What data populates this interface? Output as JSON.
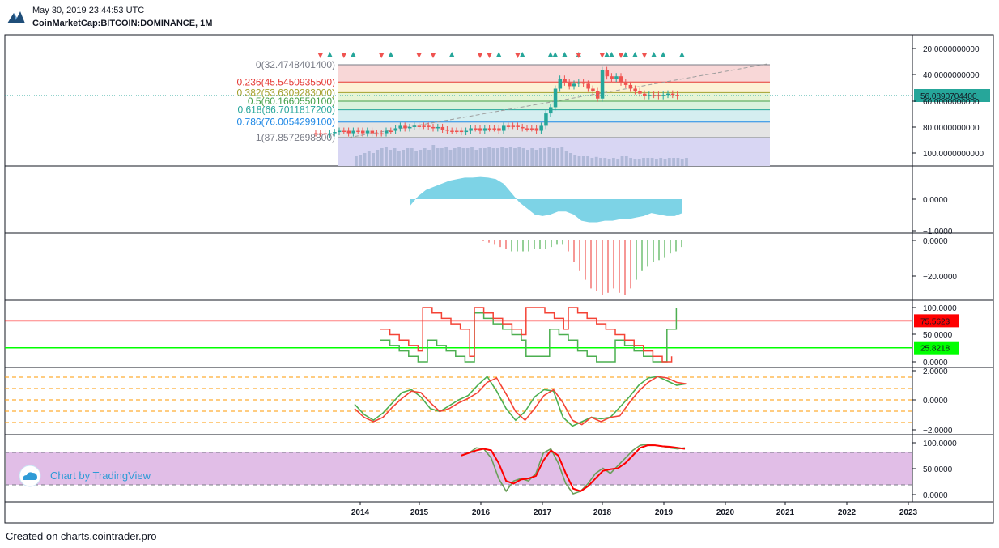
{
  "header": {
    "timestamp": "May 30, 2019 23:44:53 UTC",
    "symbol": "CoinMarketCap:BITCOIN:DOMINANCE, 1M"
  },
  "footer": {
    "text": "Created on charts.cointrader.pro"
  },
  "watermark": {
    "text": "Chart by TradingView"
  },
  "colors": {
    "up": "#26a69a",
    "down": "#ef5350",
    "price_line": "#26a69a",
    "red": "#ff0000",
    "green": "#00ff00",
    "oscillator": "#7dd3e6",
    "k_line": "#4caf50",
    "d_line": "#f44336",
    "band": "#e1bee7"
  },
  "chart_data": [
    {
      "panel": "price",
      "type": "candlestick",
      "scale": "inverted",
      "x_labels": [
        "2014",
        "2015",
        "2016",
        "2017",
        "2018",
        "2019",
        "2020",
        "2021",
        "2022",
        "2023"
      ],
      "y_ticks": [
        "20.0000000000",
        "40.0000000000",
        "60.0000000000",
        "80.0000000000",
        "100.0000000000"
      ],
      "last_price": "56.0890704400",
      "fibonacci": [
        {
          "label": "0(32.4748401400)",
          "value": 32.47,
          "color": "#787b86",
          "fill": "#f8d7d7"
        },
        {
          "label": "0.236(45.5450935500)",
          "value": 45.55,
          "color": "#e53935",
          "fill": "#fdf2d5"
        },
        {
          "label": "0.382(53.6309283000)",
          "value": 53.63,
          "color": "#a5a02c",
          "fill": "#e6f5d6"
        },
        {
          "label": "0.5(60.1660550100)",
          "value": 60.17,
          "color": "#43a047",
          "fill": "#d9f2dc"
        },
        {
          "label": "0.618(66.7011817200)",
          "value": 66.7,
          "color": "#26a69a",
          "fill": "#d5eef0"
        },
        {
          "label": "0.786(76.0054299100)",
          "value": 76.01,
          "color": "#1e88e5",
          "fill": "#e4e4e4"
        },
        {
          "label": "1(87.8572698800)",
          "value": 87.86,
          "color": "#787b86",
          "fill": "#d8d6f3"
        }
      ],
      "closes": [
        86,
        86,
        87,
        86,
        85,
        84,
        84,
        86,
        84,
        84,
        86,
        84,
        86,
        86,
        86,
        84,
        84,
        82,
        80,
        82,
        81,
        80,
        80,
        80,
        81,
        82,
        81,
        83,
        84,
        84,
        84,
        85,
        84,
        82,
        82,
        84,
        82,
        82,
        82,
        84,
        80,
        80,
        80,
        81,
        82,
        82,
        82,
        84,
        80,
        70,
        65,
        50,
        42,
        45,
        48,
        46,
        45,
        46,
        50,
        52,
        58,
        35,
        40,
        42,
        40,
        45,
        47,
        50,
        52,
        54,
        56,
        55,
        55,
        56,
        55,
        54,
        55,
        56
      ],
      "arrows_up": [
        3,
        8,
        16,
        29,
        39,
        44,
        50,
        51,
        53,
        56,
        62,
        63,
        66,
        68,
        72,
        74,
        78
      ],
      "arrows_down": [
        1,
        6,
        14,
        22,
        25,
        35,
        37,
        43,
        56,
        61,
        65,
        70
      ],
      "volumes": [
        0.3,
        0.35,
        0.4,
        0.45,
        0.4,
        0.5,
        0.55,
        0.6,
        0.5,
        0.55,
        0.45,
        0.5,
        0.55,
        0.55,
        0.45,
        0.5,
        0.55,
        0.5,
        0.65,
        0.55,
        0.55,
        0.6,
        0.5,
        0.55,
        0.6,
        0.55,
        0.55,
        0.6,
        0.5,
        0.55,
        0.55,
        0.6,
        0.55,
        0.55,
        0.6,
        0.55,
        0.6,
        0.55,
        0.6,
        0.55,
        0.5,
        0.55,
        0.5,
        0.55,
        0.55,
        0.6,
        0.55,
        0.55,
        0.6,
        0.45,
        0.4,
        0.35,
        0.3,
        0.3,
        0.3,
        0.25,
        0.28,
        0.25,
        0.25,
        0.2,
        0.25,
        0.2,
        0.3,
        0.3,
        0.25,
        0.2,
        0.2,
        0.25,
        0.25,
        0.25,
        0.2,
        0.25,
        0.2,
        0.25,
        0.25,
        0.25,
        0.2,
        0.25
      ]
    },
    {
      "panel": "oscillator",
      "type": "area",
      "y_ticks": [
        "0.0000",
        "−1.0000"
      ],
      "values": [
        -0.2,
        0.1,
        0.3,
        0.4,
        0.5,
        0.6,
        0.65,
        0.7,
        0.7,
        0.72,
        0.7,
        0.65,
        0.5,
        0.2,
        -0.1,
        -0.3,
        -0.5,
        -0.55,
        -0.5,
        -0.4,
        -0.4,
        -0.5,
        -0.7,
        -0.75,
        -0.75,
        -0.7,
        -0.7,
        -0.65,
        -0.65,
        -0.6,
        -0.55,
        -0.45,
        -0.5,
        -0.55,
        -0.55,
        -0.45
      ]
    },
    {
      "panel": "histogram",
      "type": "bar",
      "y_ticks": [
        "0.0000",
        "−20.0000"
      ],
      "values": [
        -0.3,
        -1,
        -2,
        -3,
        -4,
        -5,
        -5,
        -5,
        -5,
        -4,
        -4,
        -4,
        -3,
        -2,
        -2,
        -5,
        -10,
        -14,
        -18,
        -22,
        -23,
        -25,
        -24,
        -22,
        -24,
        -25,
        -22,
        -18,
        -14,
        -12,
        -10,
        -9,
        -8,
        -6,
        -5,
        -3
      ],
      "colors": [
        "down",
        "down",
        "down",
        "down",
        "down",
        "up",
        "up",
        "up",
        "up",
        "up",
        "up",
        "up",
        "up",
        "up",
        "up",
        "down",
        "down",
        "down",
        "down",
        "down",
        "down",
        "down",
        "down",
        "down",
        "down",
        "down",
        "down",
        "up",
        "up",
        "up",
        "up",
        "up",
        "up",
        "up",
        "up",
        "up"
      ]
    },
    {
      "panel": "stochastic",
      "type": "line",
      "y_ticks": [
        "100.0000",
        "50.0000",
        "0.0000"
      ],
      "levels": [
        {
          "label": "75.5623",
          "value": 75.5623,
          "color": "red"
        },
        {
          "label": "25.8218",
          "value": 25.8218,
          "color": "green"
        }
      ],
      "series": [
        {
          "color": "green",
          "points": [
            [
              0,
              40
            ],
            [
              2,
              30
            ],
            [
              4,
              20
            ],
            [
              6,
              10
            ],
            [
              8,
              0
            ],
            [
              9,
              0
            ],
            [
              10,
              40
            ],
            [
              12,
              30
            ],
            [
              14,
              20
            ],
            [
              16,
              10
            ],
            [
              18,
              0
            ],
            [
              19,
              0
            ],
            [
              20,
              90
            ],
            [
              22,
              80
            ],
            [
              24,
              70
            ],
            [
              26,
              60
            ],
            [
              28,
              50
            ],
            [
              30,
              40
            ],
            [
              31,
              10
            ],
            [
              33,
              10
            ],
            [
              35,
              10
            ],
            [
              36,
              60
            ],
            [
              38,
              50
            ],
            [
              40,
              40
            ],
            [
              42,
              20
            ],
            [
              44,
              10
            ],
            [
              46,
              0
            ],
            [
              48,
              0
            ],
            [
              50,
              40
            ],
            [
              52,
              30
            ],
            [
              54,
              20
            ],
            [
              56,
              10
            ],
            [
              58,
              0
            ],
            [
              60,
              0
            ],
            [
              61,
              60
            ],
            [
              62,
              60
            ],
            [
              63,
              100
            ]
          ]
        },
        {
          "color": "red",
          "points": [
            [
              0,
              60
            ],
            [
              2,
              50
            ],
            [
              4,
              40
            ],
            [
              6,
              30
            ],
            [
              8,
              20
            ],
            [
              9,
              100
            ],
            [
              11,
              90
            ],
            [
              13,
              80
            ],
            [
              15,
              70
            ],
            [
              17,
              60
            ],
            [
              19,
              10
            ],
            [
              20,
              100
            ],
            [
              22,
              90
            ],
            [
              24,
              80
            ],
            [
              26,
              70
            ],
            [
              28,
              60
            ],
            [
              30,
              50
            ],
            [
              31,
              100
            ],
            [
              33,
              100
            ],
            [
              35,
              90
            ],
            [
              37,
              80
            ],
            [
              39,
              60
            ],
            [
              40,
              100
            ],
            [
              42,
              90
            ],
            [
              44,
              80
            ],
            [
              46,
              70
            ],
            [
              48,
              60
            ],
            [
              50,
              50
            ],
            [
              52,
              40
            ],
            [
              54,
              30
            ],
            [
              56,
              20
            ],
            [
              58,
              10
            ],
            [
              60,
              0
            ],
            [
              61,
              0
            ],
            [
              62,
              10
            ]
          ]
        }
      ]
    },
    {
      "panel": "rsi_band",
      "type": "line",
      "y_ticks": [
        "2.0000",
        "0.0000",
        "−2.0000"
      ],
      "series": [
        {
          "color": "green",
          "values": [
            -0.3,
            -1.0,
            -1.4,
            -0.9,
            -0.2,
            0.5,
            0.7,
            0.2,
            -0.6,
            -0.8,
            -0.4,
            0.0,
            0.3,
            1.0,
            1.6,
            0.6,
            -0.6,
            -1.4,
            -0.8,
            0.2,
            0.7,
            0.6,
            -1.2,
            -1.8,
            -1.5,
            -1.2,
            -1.3,
            -1.2,
            -0.5,
            0.2,
            1.0,
            1.5,
            1.6,
            1.3,
            1.0,
            1.1
          ]
        },
        {
          "color": "red",
          "values": [
            -0.6,
            -1.2,
            -1.5,
            -1.2,
            -0.5,
            0.1,
            0.6,
            0.5,
            -0.2,
            -0.8,
            -0.6,
            -0.2,
            0.1,
            0.5,
            1.2,
            1.5,
            0.4,
            -0.8,
            -1.4,
            -0.6,
            0.3,
            0.7,
            -0.2,
            -1.4,
            -1.7,
            -1.2,
            -1.5,
            -1.2,
            -1.1,
            -0.2,
            0.6,
            1.2,
            1.6,
            1.5,
            1.2,
            1.1
          ]
        }
      ]
    },
    {
      "panel": "stoch_rsi",
      "type": "line",
      "y_ticks": [
        "100.0000",
        "50.0000",
        "0.0000"
      ],
      "series": [
        {
          "color": "green",
          "values": [
            75,
            80,
            90,
            88,
            70,
            30,
            5,
            25,
            30,
            25,
            40,
            80,
            88,
            60,
            20,
            0,
            5,
            20,
            40,
            50,
            40,
            55,
            70,
            85,
            95,
            97,
            95,
            93,
            90,
            88,
            90
          ]
        },
        {
          "color": "red",
          "values": [
            75,
            80,
            85,
            88,
            85,
            60,
            25,
            20,
            28,
            30,
            35,
            65,
            85,
            75,
            40,
            10,
            5,
            15,
            30,
            45,
            48,
            50,
            60,
            75,
            90,
            95,
            95,
            93,
            92,
            90,
            88
          ]
        }
      ]
    }
  ]
}
